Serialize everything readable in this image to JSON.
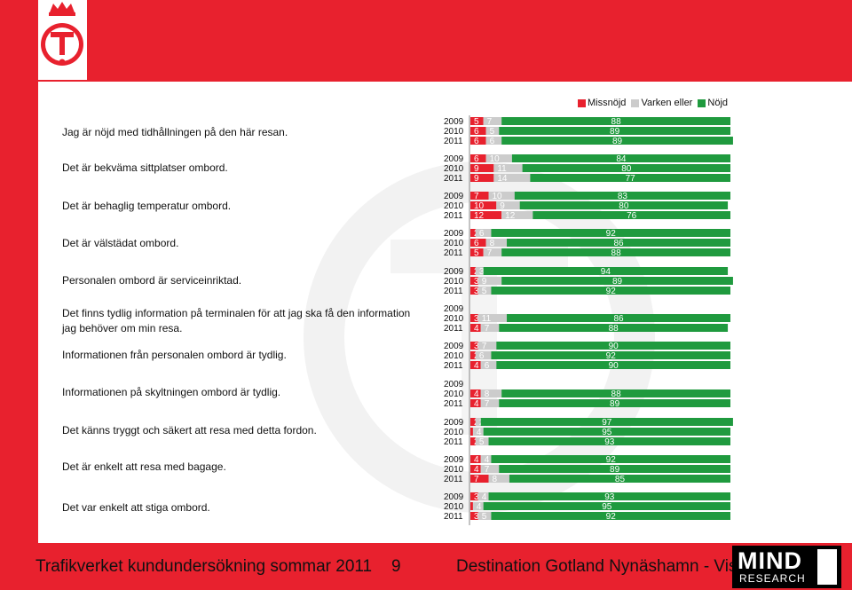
{
  "colors": {
    "brand_red": "#e8212e",
    "missnojd": "#e8212e",
    "varken_eller": "#cccccc",
    "nojd": "#1f9a3e"
  },
  "legend": [
    "Missnöjd",
    "Varken eller",
    "Nöjd"
  ],
  "statements": [
    "Jag är nöjd med tidhållningen på den här resan.",
    "Det är bekväma sittplatser ombord.",
    "Det är behaglig temperatur ombord.",
    "Det är välstädat ombord.",
    "Personalen ombord är serviceinriktad.",
    "Det finns tydlig information på terminalen för att jag ska få den information jag behöver om min resa.",
    "Informationen från personalen ombord är tydlig.",
    "Informationen på skyltningen ombord är tydlig.",
    "Det känns tryggt och säkert att resa med detta fordon.",
    "Det är enkelt att resa med bagage.",
    "Det var enkelt att stiga ombord."
  ],
  "chart_data": {
    "type": "bar",
    "orientation": "horizontal-stacked",
    "years": [
      "2009",
      "2010",
      "2011"
    ],
    "series_names": [
      "Missnöjd",
      "Varken eller",
      "Nöjd"
    ],
    "groups": [
      {
        "rows": [
          [
            5,
            7,
            88
          ],
          [
            6,
            5,
            89
          ],
          [
            6,
            6,
            89
          ]
        ]
      },
      {
        "rows": [
          [
            6,
            10,
            84
          ],
          [
            9,
            11,
            80
          ],
          [
            9,
            14,
            77
          ]
        ]
      },
      {
        "rows": [
          [
            7,
            10,
            83
          ],
          [
            10,
            9,
            80
          ],
          [
            12,
            12,
            76
          ]
        ]
      },
      {
        "rows": [
          [
            2,
            6,
            92
          ],
          [
            6,
            8,
            86
          ],
          [
            5,
            7,
            88
          ]
        ]
      },
      {
        "rows": [
          [
            2,
            3,
            94
          ],
          [
            3,
            9,
            89
          ],
          [
            3,
            5,
            92
          ]
        ]
      },
      {
        "rows": [
          null,
          [
            3,
            11,
            86
          ],
          [
            4,
            7,
            88
          ]
        ]
      },
      {
        "rows": [
          [
            3,
            7,
            90
          ],
          [
            2,
            6,
            92
          ],
          [
            4,
            6,
            90
          ]
        ]
      },
      {
        "rows": [
          null,
          [
            4,
            8,
            88
          ],
          [
            4,
            7,
            89
          ]
        ]
      },
      {
        "rows": [
          [
            2,
            2,
            97
          ],
          [
            1,
            4,
            95
          ],
          [
            2,
            5,
            93
          ]
        ]
      },
      {
        "rows": [
          [
            4,
            4,
            92
          ],
          [
            4,
            7,
            89
          ],
          [
            7,
            8,
            85
          ]
        ]
      },
      {
        "rows": [
          [
            3,
            4,
            93
          ],
          [
            1,
            4,
            95
          ],
          [
            3,
            5,
            92
          ]
        ]
      }
    ]
  },
  "footer": {
    "left": "Trafikverket kundundersökning sommar 2011",
    "page": "9",
    "right": "Destination Gotland Nynäshamn - Visby"
  },
  "mind_logo": {
    "word": "MIND",
    "sub": "RESEARCH"
  }
}
